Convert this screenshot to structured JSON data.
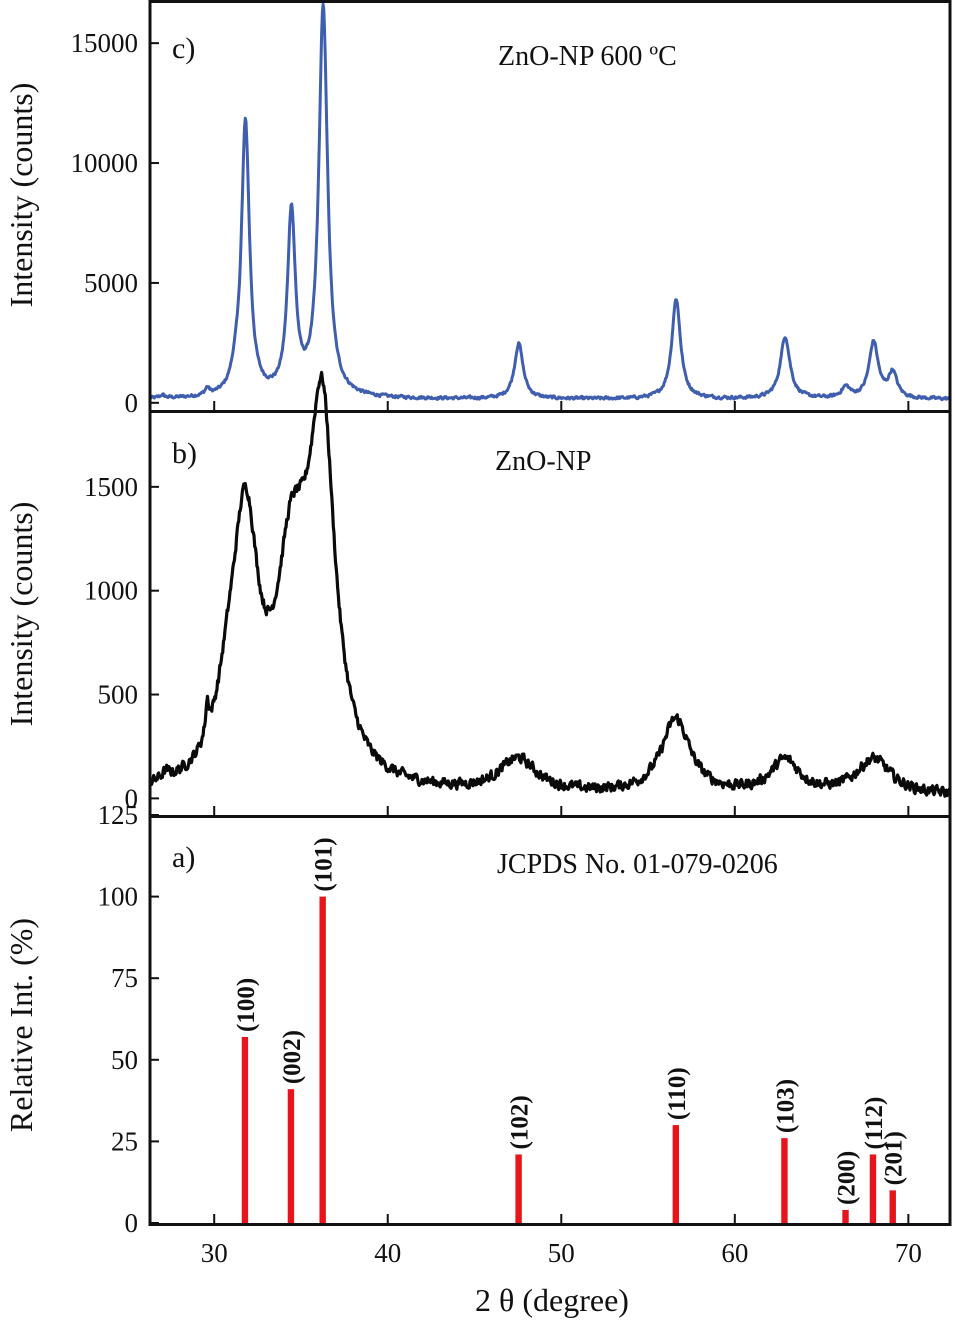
{
  "figure": {
    "x_axis_label": "2 θ (degree)",
    "x_ticks": [
      30,
      40,
      50,
      60,
      70
    ],
    "xlim": [
      26.3,
      72.4
    ]
  },
  "chart_data": [
    {
      "type": "line",
      "panel_letter": "c)",
      "title": "ZnO-NP 600 ºC",
      "ylabel": "Intensity (counts)",
      "xlabel": "2 θ (degree)",
      "ylim": [
        -300,
        16800
      ],
      "y_ticks": [
        0,
        5000,
        10000,
        15000
      ],
      "color": "#3f5fae",
      "baseline": 150,
      "noise": 55,
      "peaks": [
        {
          "x": 27.0,
          "height": 120,
          "width": 0.15
        },
        {
          "x": 29.6,
          "height": 280,
          "width": 0.15
        },
        {
          "x": 31.2,
          "height": 500,
          "width": 0.25
        },
        {
          "x": 31.8,
          "height": 11450,
          "width": 0.28
        },
        {
          "x": 34.45,
          "height": 7650,
          "width": 0.27
        },
        {
          "x": 36.28,
          "height": 16300,
          "width": 0.3
        },
        {
          "x": 47.55,
          "height": 2300,
          "width": 0.3
        },
        {
          "x": 56.62,
          "height": 4180,
          "width": 0.3
        },
        {
          "x": 62.9,
          "height": 2600,
          "width": 0.33
        },
        {
          "x": 66.4,
          "height": 450,
          "width": 0.3
        },
        {
          "x": 68.0,
          "height": 2350,
          "width": 0.32
        },
        {
          "x": 69.1,
          "height": 1050,
          "width": 0.3
        }
      ]
    },
    {
      "type": "line",
      "panel_letter": "b)",
      "title": "ZnO-NP",
      "ylabel": "Intensity (counts)",
      "xlabel": "2 θ (degree)",
      "ylim": [
        -80,
        1870
      ],
      "y_ticks": [
        0,
        500,
        1000,
        1500
      ],
      "color": "#0a0a0a",
      "baseline": 10,
      "noise": 22,
      "peaks": [
        {
          "x": 27.2,
          "height": 30,
          "width": 0.3
        },
        {
          "x": 29.6,
          "height": 150,
          "width": 0.12
        },
        {
          "x": 30.8,
          "height": 250,
          "width": 0.8
        },
        {
          "x": 31.8,
          "height": 1200,
          "width": 0.9
        },
        {
          "x": 34.4,
          "height": 780,
          "width": 1.0
        },
        {
          "x": 35.3,
          "height": 350,
          "width": 1.2
        },
        {
          "x": 36.25,
          "height": 1560,
          "width": 0.85
        },
        {
          "x": 47.5,
          "height": 160,
          "width": 1.3
        },
        {
          "x": 56.6,
          "height": 360,
          "width": 1.0
        },
        {
          "x": 62.9,
          "height": 160,
          "width": 1.0
        },
        {
          "x": 68.0,
          "height": 170,
          "width": 1.2
        }
      ]
    },
    {
      "type": "bar",
      "panel_letter": "a)",
      "title": "JCPDS No. 01-079-0206",
      "ylabel": "Relative Int. (%)",
      "xlabel": "2 θ (degree)",
      "ylim": [
        0,
        125
      ],
      "y_ticks": [
        0,
        25,
        50,
        75,
        100,
        125
      ],
      "color": "#e8141b",
      "bars": [
        {
          "x": 31.77,
          "value": 57,
          "label": "(100)"
        },
        {
          "x": 34.42,
          "value": 41,
          "label": "(002)"
        },
        {
          "x": 36.25,
          "value": 100,
          "label": "(101)"
        },
        {
          "x": 47.54,
          "value": 21,
          "label": "(102)"
        },
        {
          "x": 56.6,
          "value": 30,
          "label": "(110)"
        },
        {
          "x": 62.86,
          "value": 26,
          "label": "(103)"
        },
        {
          "x": 66.38,
          "value": 4,
          "label": "(200)"
        },
        {
          "x": 67.96,
          "value": 21,
          "label": "(112)"
        },
        {
          "x": 69.1,
          "value": 10,
          "label": "(201)"
        }
      ]
    }
  ]
}
